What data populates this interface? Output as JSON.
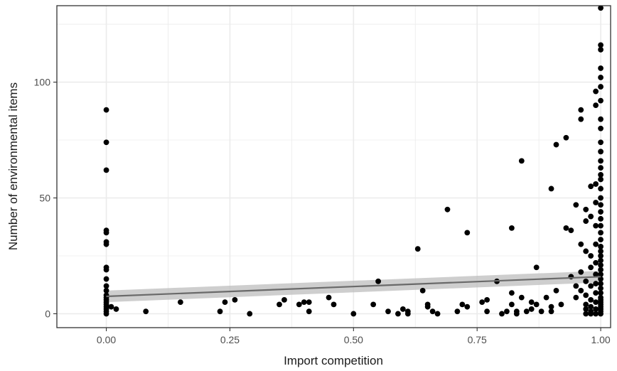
{
  "chart_data": {
    "type": "scatter",
    "xlabel": "Import competition",
    "ylabel": "Number of environmental items",
    "xlim": [
      -0.1,
      1.02
    ],
    "ylim": [
      -6,
      133
    ],
    "x_ticks": [
      0,
      0.25,
      0.5,
      0.75,
      1
    ],
    "x_tick_labels": [
      "0.00",
      "0.25",
      "0.50",
      "0.75",
      "1.00"
    ],
    "y_ticks": [
      0,
      50,
      100
    ],
    "y_tick_labels": [
      "0",
      "50",
      "100"
    ],
    "grid": true,
    "colors": {
      "points": "#000000",
      "fit_line": "#6a6a6a",
      "band": "#bdbdbd",
      "grid": "#ebebeb",
      "frame": "#333333"
    },
    "fit_line": {
      "x": [
        0,
        1
      ],
      "y": [
        7.5,
        16
      ]
    },
    "confidence_band": {
      "x": [
        0,
        1
      ],
      "lower": [
        5,
        13.5
      ],
      "upper": [
        10,
        18.5
      ]
    },
    "points": [
      [
        0,
        88
      ],
      [
        0,
        74
      ],
      [
        0,
        62
      ],
      [
        0,
        36
      ],
      [
        0,
        35
      ],
      [
        0,
        31
      ],
      [
        0,
        30
      ],
      [
        0,
        20
      ],
      [
        0,
        19
      ],
      [
        0,
        15
      ],
      [
        0,
        12
      ],
      [
        0,
        10
      ],
      [
        0,
        8
      ],
      [
        0,
        7
      ],
      [
        0,
        6
      ],
      [
        0,
        5
      ],
      [
        0,
        4
      ],
      [
        0,
        3
      ],
      [
        0,
        2
      ],
      [
        0,
        1
      ],
      [
        0,
        0
      ],
      [
        0.01,
        3
      ],
      [
        0.02,
        2
      ],
      [
        0.08,
        1
      ],
      [
        0.15,
        5
      ],
      [
        0.23,
        1
      ],
      [
        0.24,
        5
      ],
      [
        0.26,
        6
      ],
      [
        0.29,
        0
      ],
      [
        0.35,
        4
      ],
      [
        0.36,
        6
      ],
      [
        0.39,
        4
      ],
      [
        0.4,
        5
      ],
      [
        0.41,
        1
      ],
      [
        0.41,
        5
      ],
      [
        0.45,
        7
      ],
      [
        0.46,
        4
      ],
      [
        0.5,
        0
      ],
      [
        0.54,
        4
      ],
      [
        0.55,
        14
      ],
      [
        0.57,
        1
      ],
      [
        0.59,
        0
      ],
      [
        0.6,
        2
      ],
      [
        0.61,
        1
      ],
      [
        0.61,
        0
      ],
      [
        0.63,
        28
      ],
      [
        0.64,
        10
      ],
      [
        0.65,
        4
      ],
      [
        0.65,
        3
      ],
      [
        0.66,
        1
      ],
      [
        0.67,
        0
      ],
      [
        0.69,
        45
      ],
      [
        0.71,
        1
      ],
      [
        0.72,
        4
      ],
      [
        0.73,
        35
      ],
      [
        0.73,
        3
      ],
      [
        0.76,
        5
      ],
      [
        0.77,
        6
      ],
      [
        0.77,
        1
      ],
      [
        0.79,
        14
      ],
      [
        0.8,
        0
      ],
      [
        0.81,
        1
      ],
      [
        0.82,
        37
      ],
      [
        0.82,
        9
      ],
      [
        0.82,
        4
      ],
      [
        0.83,
        1
      ],
      [
        0.83,
        0
      ],
      [
        0.84,
        66
      ],
      [
        0.84,
        7
      ],
      [
        0.85,
        1
      ],
      [
        0.86,
        5
      ],
      [
        0.86,
        2
      ],
      [
        0.87,
        20
      ],
      [
        0.87,
        4
      ],
      [
        0.88,
        1
      ],
      [
        0.89,
        7
      ],
      [
        0.9,
        3
      ],
      [
        0.9,
        1
      ],
      [
        0.9,
        54
      ],
      [
        0.91,
        73
      ],
      [
        0.91,
        10
      ],
      [
        0.92,
        4
      ],
      [
        0.93,
        76
      ],
      [
        0.93,
        37
      ],
      [
        0.94,
        36
      ],
      [
        0.94,
        16
      ],
      [
        0.95,
        47
      ],
      [
        0.95,
        12
      ],
      [
        0.95,
        7
      ],
      [
        0.96,
        88
      ],
      [
        0.96,
        84
      ],
      [
        0.96,
        30
      ],
      [
        0.96,
        18
      ],
      [
        0.96,
        10
      ],
      [
        0.97,
        45
      ],
      [
        0.97,
        40
      ],
      [
        0.97,
        27
      ],
      [
        0.97,
        14
      ],
      [
        0.97,
        8
      ],
      [
        0.97,
        4
      ],
      [
        0.97,
        2
      ],
      [
        0.97,
        0
      ],
      [
        0.98,
        55
      ],
      [
        0.98,
        42
      ],
      [
        0.98,
        25
      ],
      [
        0.98,
        20
      ],
      [
        0.98,
        12
      ],
      [
        0.98,
        6
      ],
      [
        0.98,
        3
      ],
      [
        0.98,
        1
      ],
      [
        0.98,
        0
      ],
      [
        0.99,
        96
      ],
      [
        0.99,
        90
      ],
      [
        0.99,
        56
      ],
      [
        0.99,
        48
      ],
      [
        0.99,
        38
      ],
      [
        0.99,
        30
      ],
      [
        0.99,
        22
      ],
      [
        0.99,
        17
      ],
      [
        0.99,
        13
      ],
      [
        0.99,
        9
      ],
      [
        0.99,
        5
      ],
      [
        0.99,
        2
      ],
      [
        0.99,
        0
      ],
      [
        1,
        132
      ],
      [
        1,
        116
      ],
      [
        1,
        114
      ],
      [
        1,
        106
      ],
      [
        1,
        102
      ],
      [
        1,
        98
      ],
      [
        1,
        92
      ],
      [
        1,
        84
      ],
      [
        1,
        80
      ],
      [
        1,
        74
      ],
      [
        1,
        70
      ],
      [
        1,
        66
      ],
      [
        1,
        63
      ],
      [
        1,
        60
      ],
      [
        1,
        58
      ],
      [
        1,
        54
      ],
      [
        1,
        50
      ],
      [
        1,
        47
      ],
      [
        1,
        44
      ],
      [
        1,
        41
      ],
      [
        1,
        38
      ],
      [
        1,
        35
      ],
      [
        1,
        32
      ],
      [
        1,
        29
      ],
      [
        1,
        27
      ],
      [
        1,
        25
      ],
      [
        1,
        23
      ],
      [
        1,
        21
      ],
      [
        1,
        19
      ],
      [
        1,
        17
      ],
      [
        1,
        15
      ],
      [
        1,
        13
      ],
      [
        1,
        11
      ],
      [
        1,
        9
      ],
      [
        1,
        7
      ],
      [
        1,
        6
      ],
      [
        1,
        5
      ],
      [
        1,
        4
      ],
      [
        1,
        3
      ],
      [
        1,
        2
      ],
      [
        1,
        1
      ],
      [
        1,
        0
      ]
    ]
  }
}
